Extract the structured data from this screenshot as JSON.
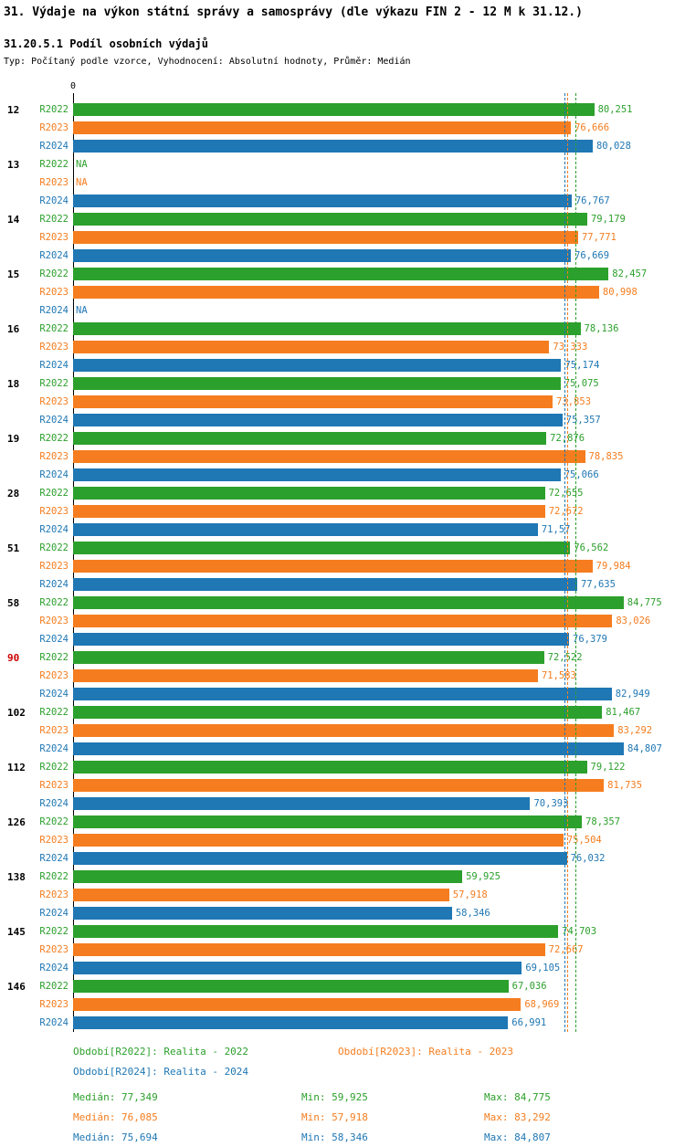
{
  "header": {
    "title": "31. Výdaje na výkon státní správy a samosprávy (dle výkazu FIN 2 - 12 M k 31.12.)",
    "subtitle": "31.20.5.1 Podíl osobních výdajů",
    "meta": "Typ: Počítaný podle vzorce, Vyhodnocení: Absolutní hodnoty, Průměr: Medián"
  },
  "chart_data": {
    "type": "bar",
    "orientation": "horizontal",
    "title": "31.20.5.1 Podíl osobních výdajů",
    "xlabel": "",
    "ylabel": "",
    "axis_zero_label": "0",
    "xlim": [
      0,
      85
    ],
    "grid": false,
    "legend_position": "bottom",
    "categories": [
      "12",
      "13",
      "14",
      "15",
      "16",
      "18",
      "19",
      "28",
      "51",
      "58",
      "90",
      "102",
      "112",
      "126",
      "138",
      "145",
      "146"
    ],
    "highlighted_category": "90",
    "highlight_color": "#cc0000",
    "na_text": "NA",
    "series": [
      {
        "name": "R2022",
        "color": "#2ca02c",
        "median": 77.349,
        "values": [
          80.251,
          null,
          79.179,
          82.457,
          78.136,
          75.075,
          72.876,
          72.655,
          76.562,
          84.775,
          72.522,
          81.467,
          79.122,
          78.357,
          59.925,
          74.703,
          67.036
        ],
        "labels": [
          "80,251",
          "NA",
          "79,179",
          "82,457",
          "78,136",
          "75,075",
          "72,876",
          "72,655",
          "76,562",
          "84,775",
          "72,522",
          "81,467",
          "79,122",
          "78,357",
          "59,925",
          "74,703",
          "67,036"
        ]
      },
      {
        "name": "R2023",
        "color": "#f57d1f",
        "median": 76.085,
        "values": [
          76.666,
          null,
          77.771,
          80.998,
          73.333,
          73.853,
          78.835,
          72.672,
          79.984,
          83.026,
          71.583,
          83.292,
          81.735,
          75.504,
          57.918,
          72.667,
          68.969
        ],
        "labels": [
          "76,666",
          "NA",
          "77,771",
          "80,998",
          "73,333",
          "73,853",
          "78,835",
          "72,672",
          "79,984",
          "83,026",
          "71,583",
          "83,292",
          "81,735",
          "75,504",
          "57,918",
          "72,667",
          "68,969"
        ]
      },
      {
        "name": "R2024",
        "color": "#1f77b4",
        "median": 75.694,
        "values": [
          80.028,
          76.767,
          76.669,
          null,
          75.174,
          75.357,
          75.066,
          71.57,
          77.635,
          76.379,
          82.949,
          84.807,
          70.393,
          76.032,
          58.346,
          69.105,
          66.991
        ],
        "labels": [
          "80,028",
          "76,767",
          "76,669",
          "NA",
          "75,174",
          "75,357",
          "75,066",
          "71,57",
          "77,635",
          "76,379",
          "82,949",
          "84,807",
          "70,393",
          "76,032",
          "58,346",
          "69,105",
          "66,991"
        ]
      }
    ]
  },
  "legend": {
    "items": [
      {
        "label": "Období[R2022]: Realita - 2022"
      },
      {
        "label": "Období[R2023]: Realita - 2023"
      },
      {
        "label": "Období[R2024]: Realita - 2024"
      }
    ]
  },
  "stats": [
    {
      "median": "Medián: 77,349",
      "min": "Min: 59,925",
      "max": "Max: 84,775"
    },
    {
      "median": "Medián: 76,085",
      "min": "Min: 57,918",
      "max": "Max: 83,292"
    },
    {
      "median": "Medián: 75,694",
      "min": "Min: 58,346",
      "max": "Max: 84,807"
    }
  ]
}
